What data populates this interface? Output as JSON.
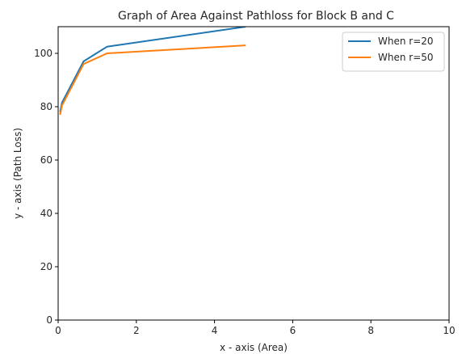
{
  "chart_data": {
    "type": "line",
    "title": "Graph of  Area Against Pathloss for Block B and C",
    "xlabel": "x - axis (Area)",
    "ylabel": "y - axis (Path Loss)",
    "xlim": [
      0,
      10
    ],
    "ylim": [
      0,
      110
    ],
    "xticks": [
      0,
      2,
      4,
      6,
      8,
      10
    ],
    "yticks": [
      0,
      20,
      40,
      60,
      80,
      100
    ],
    "grid": false,
    "legend_position": "top-right",
    "series": [
      {
        "name": "When r=20",
        "color": "#1f77b4",
        "x": [
          0.05,
          0.1,
          0.65,
          1.25,
          4.8
        ],
        "y": [
          78,
          81.5,
          97,
          102.5,
          110
        ]
      },
      {
        "name": "When r=50",
        "color": "#ff7f0e",
        "x": [
          0.05,
          0.1,
          0.65,
          1.25,
          4.8
        ],
        "y": [
          77,
          80.5,
          96,
          100,
          103
        ]
      }
    ]
  }
}
